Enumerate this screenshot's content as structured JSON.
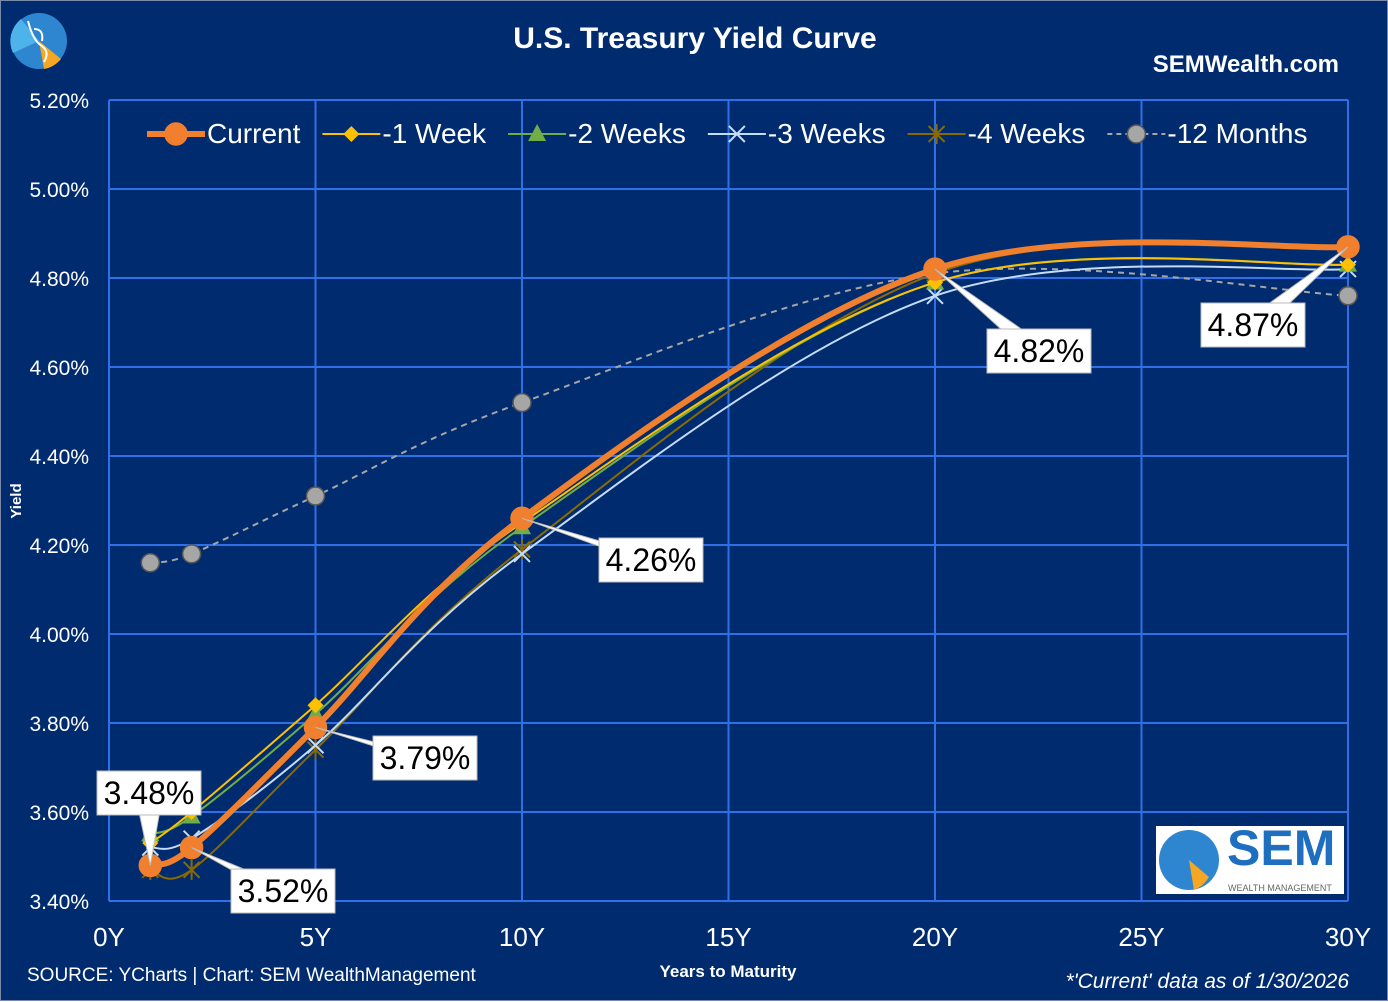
{
  "chart_data": {
    "type": "line",
    "title": "U.S. Treasury Yield Curve",
    "brand": "SEMWealth.com",
    "xlabel": "Years to Maturity",
    "ylabel": "Yield",
    "xlim": [
      0,
      30
    ],
    "ylim": [
      3.4,
      5.2
    ],
    "x_ticks": [
      "0Y",
      "5Y",
      "10Y",
      "15Y",
      "20Y",
      "25Y",
      "30Y"
    ],
    "y_ticks": [
      "3.40%",
      "3.60%",
      "3.80%",
      "4.00%",
      "4.20%",
      "4.40%",
      "4.60%",
      "4.80%",
      "5.00%",
      "5.20%"
    ],
    "grid": true,
    "legend_position": "top",
    "x": [
      1,
      2,
      5,
      10,
      20,
      30
    ],
    "series": [
      {
        "name": "Current",
        "color": "#f07f2e",
        "marker": "circle",
        "values": [
          3.48,
          3.52,
          3.79,
          4.26,
          4.82,
          4.87
        ]
      },
      {
        "name": "-1 Week",
        "color": "#ffc000",
        "marker": "diamond",
        "values": [
          3.53,
          3.6,
          3.84,
          4.25,
          4.79,
          4.83
        ]
      },
      {
        "name": "-2 Weeks",
        "color": "#70ad47",
        "marker": "triangle",
        "values": [
          3.55,
          3.59,
          3.82,
          4.24,
          4.79,
          4.83
        ]
      },
      {
        "name": "-3 Weeks",
        "color": "#c5dcf5",
        "marker": "x",
        "values": [
          3.52,
          3.54,
          3.75,
          4.18,
          4.76,
          4.82
        ]
      },
      {
        "name": "-4 Weeks",
        "color": "#8a6a00",
        "marker": "star",
        "values": [
          3.47,
          3.47,
          3.74,
          4.19,
          4.81,
          4.87
        ]
      },
      {
        "name": "-12 Months",
        "color": "#a6a6a6",
        "marker": "circle",
        "dashed": true,
        "values": [
          4.16,
          4.18,
          4.31,
          4.52,
          4.81,
          4.76
        ]
      }
    ],
    "data_labels": [
      "3.48%",
      "3.52%",
      "3.79%",
      "4.26%",
      "4.82%",
      "4.87%"
    ],
    "source": "SOURCE: YCharts | Chart: SEM WealthManagement",
    "footnote": "*'Current' data as of 1/30/2026",
    "logo": {
      "text": "SEM",
      "subtext": "WEALTH MANAGEMENT"
    }
  }
}
